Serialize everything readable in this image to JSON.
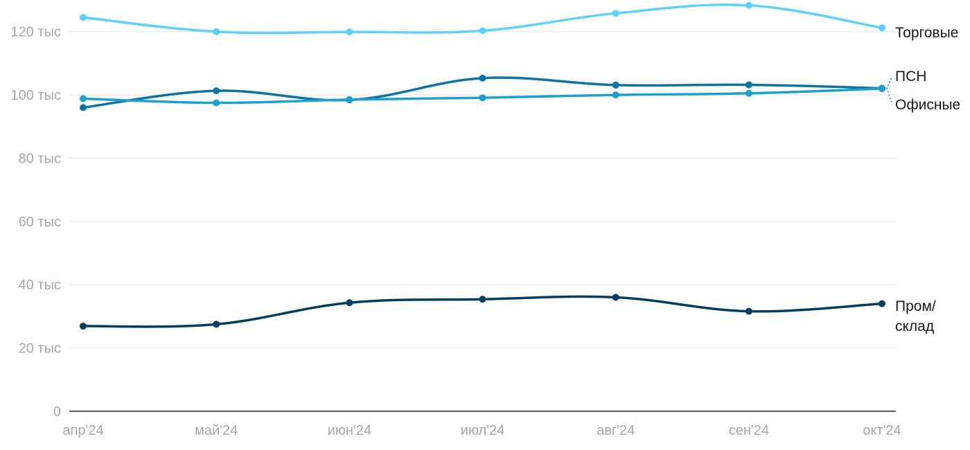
{
  "chart_data": {
    "type": "line",
    "x": [
      "апр'24",
      "май'24",
      "июн'24",
      "июл'24",
      "авг'24",
      "сен'24",
      "окт'24"
    ],
    "ylim": [
      0,
      130000
    ],
    "y_ticks": [
      {
        "value": 0,
        "label": "0"
      },
      {
        "value": 20000,
        "label": "20 тыс"
      },
      {
        "value": 40000,
        "label": "40 тыс"
      },
      {
        "value": 60000,
        "label": "60 тыс"
      },
      {
        "value": 80000,
        "label": "80 тыс"
      },
      {
        "value": 100000,
        "label": "100 тыс"
      },
      {
        "value": 120000,
        "label": "120 тыс"
      }
    ],
    "grid": true,
    "legend": "series names at line ends (right)",
    "series": [
      {
        "name": "Торговые",
        "color": "#5fd0f7",
        "values": [
          124500,
          120000,
          119900,
          120300,
          125800,
          128300,
          121200
        ]
      },
      {
        "name": "ПСН",
        "color": "#0b74a3",
        "values": [
          96000,
          101300,
          98400,
          105300,
          103100,
          103200,
          102100
        ]
      },
      {
        "name": "Офисные",
        "color": "#1ea0cf",
        "values": [
          98800,
          97500,
          98500,
          99100,
          100000,
          100500,
          102000
        ]
      },
      {
        "name": "Пром/ склад",
        "name_lines": [
          "Пром/",
          "склад"
        ],
        "color": "#003e61",
        "values": [
          26900,
          27500,
          34300,
          35400,
          36000,
          31600,
          34000
        ]
      }
    ]
  }
}
